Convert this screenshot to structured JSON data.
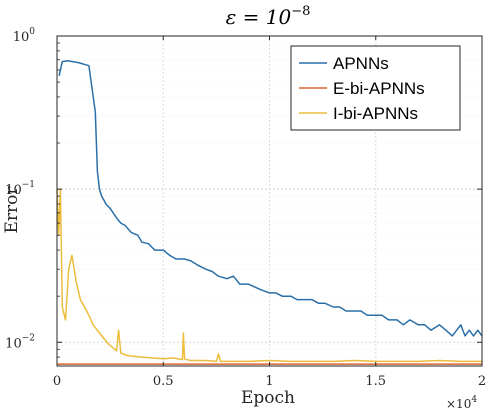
{
  "chart_data": {
    "type": "line",
    "title": "ε = 10",
    "title_exponent": "−8",
    "xlabel": "Epoch",
    "ylabel": "Error",
    "x_multiplier_base": "×10",
    "x_multiplier_exp": "4",
    "xlim": [
      0,
      20000
    ],
    "ylim": [
      0.007,
      1
    ],
    "yscale": "log",
    "grid": true,
    "legend_position": "top-right",
    "x_ticks": [
      0,
      5000,
      10000,
      15000,
      20000
    ],
    "x_tick_labels": [
      "0",
      "0.5",
      "1",
      "1.5",
      "2"
    ],
    "y_ticks": [
      0.01,
      0.1,
      1
    ],
    "y_tick_base": "10",
    "y_tick_exps": [
      "−2",
      "−1",
      "0"
    ],
    "series": [
      {
        "name": "APNNs",
        "color": "#2a6fa8",
        "x": [
          100,
          250,
          500,
          1000,
          1500,
          1800,
          1900,
          2000,
          2100,
          2200,
          2300,
          2500,
          2800,
          3000,
          3200,
          3500,
          3800,
          4000,
          4300,
          4600,
          5000,
          5300,
          5600,
          6000,
          6300,
          6600,
          7000,
          7300,
          7600,
          8000,
          8300,
          8600,
          9000,
          9300,
          9600,
          10000,
          10300,
          10600,
          11000,
          11300,
          11600,
          12000,
          12300,
          12600,
          13000,
          13300,
          13600,
          14000,
          14300,
          14600,
          15000,
          15300,
          15600,
          16000,
          16300,
          16600,
          17000,
          17300,
          17600,
          18000,
          18300,
          18600,
          19000,
          19200,
          19400,
          19600,
          19800,
          20000
        ],
        "values": [
          0.55,
          0.68,
          0.69,
          0.67,
          0.64,
          0.32,
          0.13,
          0.1,
          0.09,
          0.085,
          0.08,
          0.075,
          0.065,
          0.06,
          0.058,
          0.052,
          0.05,
          0.045,
          0.044,
          0.04,
          0.04,
          0.037,
          0.035,
          0.035,
          0.034,
          0.032,
          0.03,
          0.029,
          0.027,
          0.026,
          0.027,
          0.024,
          0.024,
          0.023,
          0.022,
          0.021,
          0.021,
          0.02,
          0.02,
          0.019,
          0.019,
          0.019,
          0.018,
          0.018,
          0.017,
          0.017,
          0.016,
          0.016,
          0.016,
          0.015,
          0.015,
          0.015,
          0.014,
          0.014,
          0.013,
          0.014,
          0.013,
          0.013,
          0.012,
          0.013,
          0.012,
          0.011,
          0.013,
          0.011,
          0.012,
          0.011,
          0.012,
          0.011
        ]
      },
      {
        "name": "E-bi-APNNs",
        "color": "#d9652b",
        "x": [
          0,
          20000
        ],
        "values": [
          0.0072,
          0.0072
        ]
      },
      {
        "name": "I-bi-APNNs",
        "color": "#ecbd3c",
        "x": [
          0,
          80,
          160,
          250,
          400,
          550,
          700,
          900,
          1100,
          1400,
          1700,
          2000,
          2400,
          2800,
          2900,
          3000,
          3300,
          3600,
          4000,
          4500,
          5000,
          5500,
          5900,
          5950,
          6000,
          6100,
          6300,
          7000,
          7500,
          7600,
          7700,
          8000,
          9000,
          10000,
          11000,
          12000,
          13000,
          14000,
          15000,
          16000,
          17000,
          18000,
          19000,
          20000
        ],
        "values": [
          0.1,
          0.05,
          0.1,
          0.017,
          0.014,
          0.03,
          0.037,
          0.025,
          0.019,
          0.016,
          0.013,
          0.0115,
          0.0098,
          0.0088,
          0.012,
          0.0085,
          0.0082,
          0.0081,
          0.008,
          0.0079,
          0.0078,
          0.0079,
          0.0077,
          0.0115,
          0.0078,
          0.0077,
          0.0076,
          0.0076,
          0.0075,
          0.0084,
          0.0075,
          0.0075,
          0.0075,
          0.0076,
          0.0075,
          0.0075,
          0.0075,
          0.0076,
          0.0075,
          0.0075,
          0.0075,
          0.0076,
          0.0075,
          0.0075
        ]
      }
    ]
  }
}
